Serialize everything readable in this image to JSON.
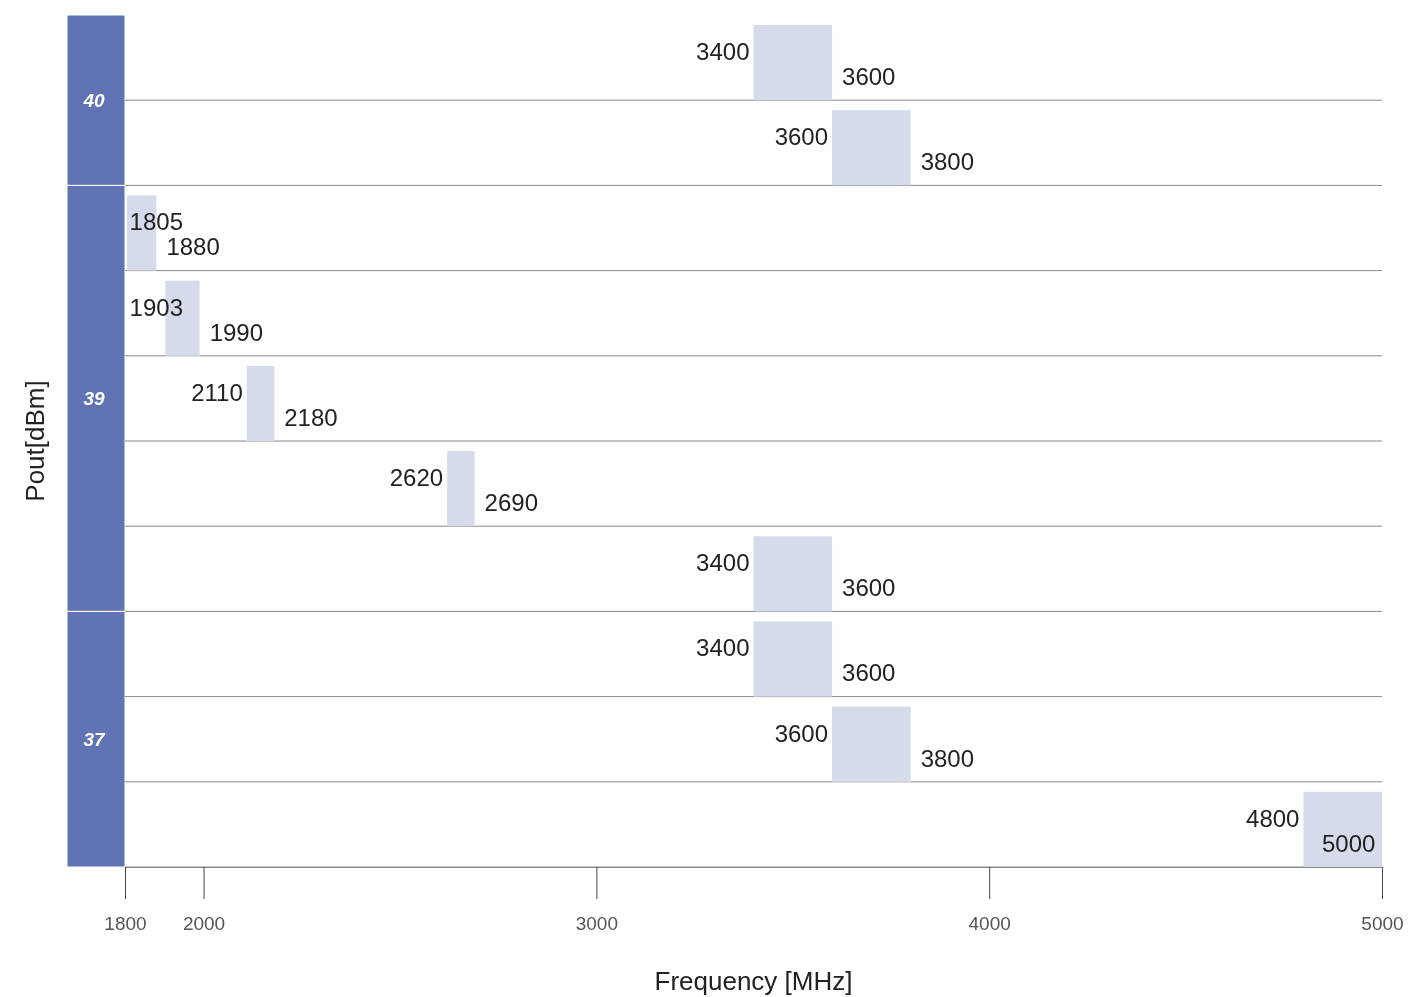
{
  "chart_data": {
    "type": "bar",
    "orientation": "horizontal",
    "xlabel": "Frequency [MHz]",
    "ylabel": "Pout[dBm]",
    "categories": [
      null,
      null,
      null,
      null,
      null,
      null,
      null,
      null,
      null,
      null
    ],
    "base": [
      3400,
      3600,
      1805,
      1903,
      2110,
      2620,
      3400,
      3400,
      3600,
      4800
    ],
    "values": [
      200,
      200,
      75,
      87,
      70,
      70,
      200,
      200,
      200,
      200
    ],
    "color": "#d5dbeb",
    "xlim": [
      1800,
      5000
    ],
    "xticks": [
      1800,
      2000,
      3000,
      4000,
      5000
    ],
    "grid": "y",
    "annotations": [
      "40",
      "39",
      "37",
      {
        "text": "3400",
        "x": 3400
      },
      {
        "text": "3600",
        "x": 3600
      },
      {
        "text": "3600",
        "x": 3600
      },
      {
        "text": "3800",
        "x": 3800
      },
      {
        "text": "1805",
        "x": 1805
      },
      {
        "text": "1880",
        "x": 1880
      },
      {
        "text": "1903",
        "x": 1903
      },
      {
        "text": "1990",
        "x": 1990
      },
      {
        "text": "2110",
        "x": 2110
      },
      {
        "text": "2180",
        "x": 2180
      },
      {
        "text": "2620",
        "x": 2620
      },
      {
        "text": "2690",
        "x": 2690
      },
      {
        "text": "3400",
        "x": 3400
      },
      {
        "text": "3600",
        "x": 3600
      },
      {
        "text": "3400",
        "x": 3400
      },
      {
        "text": "3600",
        "x": 3600
      },
      {
        "text": "3600",
        "x": 3600
      },
      {
        "text": "3800",
        "x": 3800
      },
      {
        "text": "4800",
        "x": 4800
      },
      {
        "text": "5000",
        "x": 5000
      }
    ]
  }
}
